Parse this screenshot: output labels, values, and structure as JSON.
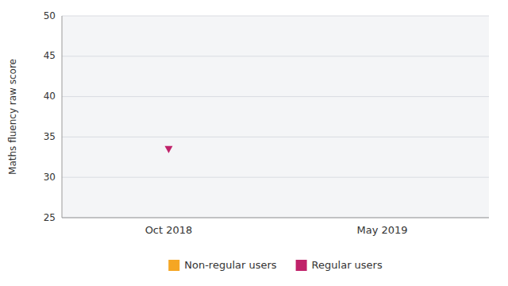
{
  "chart_data": {
    "type": "scatter",
    "ylabel": "Maths fluency raw score",
    "categories": [
      "Oct 2018",
      "May 2019"
    ],
    "series": [
      {
        "name": "Non-regular users",
        "color": "#f5a623",
        "marker": "square",
        "values": [
          null,
          null
        ]
      },
      {
        "name": "Regular users",
        "color": "#c0226a",
        "marker": "triangle-down",
        "values": [
          33.5,
          null
        ]
      }
    ],
    "ylim": [
      25,
      50
    ],
    "yticks": [
      25,
      30,
      35,
      40,
      45,
      50
    ],
    "grid": true,
    "legend": "bottom"
  }
}
